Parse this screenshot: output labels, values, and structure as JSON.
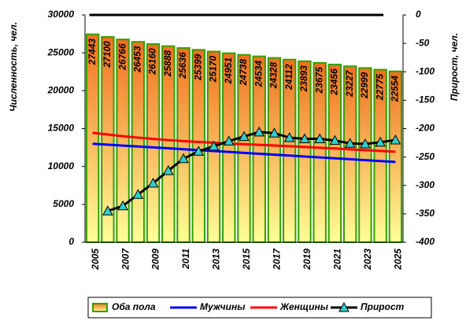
{
  "chart_data": {
    "type": "bar",
    "ylabel": "Численность, чел.",
    "y2label": "Прирост, чел.",
    "categories": [
      "2005",
      null,
      "2007",
      null,
      "2009",
      null,
      "2011",
      null,
      "2013",
      null,
      "2015",
      null,
      "2017",
      null,
      "2019",
      null,
      "2021",
      null,
      "2023",
      null,
      "2025"
    ],
    "series": [
      {
        "name": "Оба пола",
        "type": "bar",
        "color": "#f07020",
        "gradient_to": "#ffff99",
        "edge_color": "#33a000",
        "values": [
          27443,
          27100,
          26766,
          26453,
          26160,
          25888,
          25636,
          25399,
          25170,
          24951,
          24738,
          24534,
          24328,
          24112,
          23893,
          23675,
          23456,
          23227,
          22999,
          22775,
          22554
        ]
      },
      {
        "name": "Мужчины",
        "type": "line",
        "color": "#0000ff",
        "values": [
          13000,
          12880,
          12760,
          12640,
          12520,
          12400,
          12280,
          12160,
          12040,
          11920,
          11800,
          11680,
          11560,
          11440,
          11320,
          11200,
          11080,
          10960,
          10840,
          10720,
          10600
        ]
      },
      {
        "name": "Женщины",
        "type": "line",
        "color": "#ff0000",
        "values": [
          14443,
          14220,
          14006,
          13813,
          13640,
          13488,
          13356,
          13239,
          13130,
          13031,
          12938,
          12854,
          12768,
          12672,
          12573,
          12475,
          12376,
          12267,
          12159,
          12055,
          11954
        ]
      },
      {
        "name": "Прирост",
        "type": "line",
        "axis": "y2",
        "color": "#000000",
        "marker_color": "#33cccc",
        "values": [
          null,
          -345,
          -336,
          -316,
          -296,
          -274,
          -253,
          -240,
          -231,
          -222,
          -214,
          -206,
          -208,
          -216,
          -218,
          -218,
          -221,
          -226,
          -227,
          -224,
          -220
        ]
      }
    ],
    "ylim": [
      0,
      30000
    ],
    "yticks": [
      0,
      5000,
      10000,
      15000,
      20000,
      25000,
      30000
    ],
    "y2lim": [
      -400,
      0
    ],
    "y2ticks": [
      -400,
      -350,
      -300,
      -250,
      -200,
      -150,
      -100,
      -50,
      0
    ]
  }
}
